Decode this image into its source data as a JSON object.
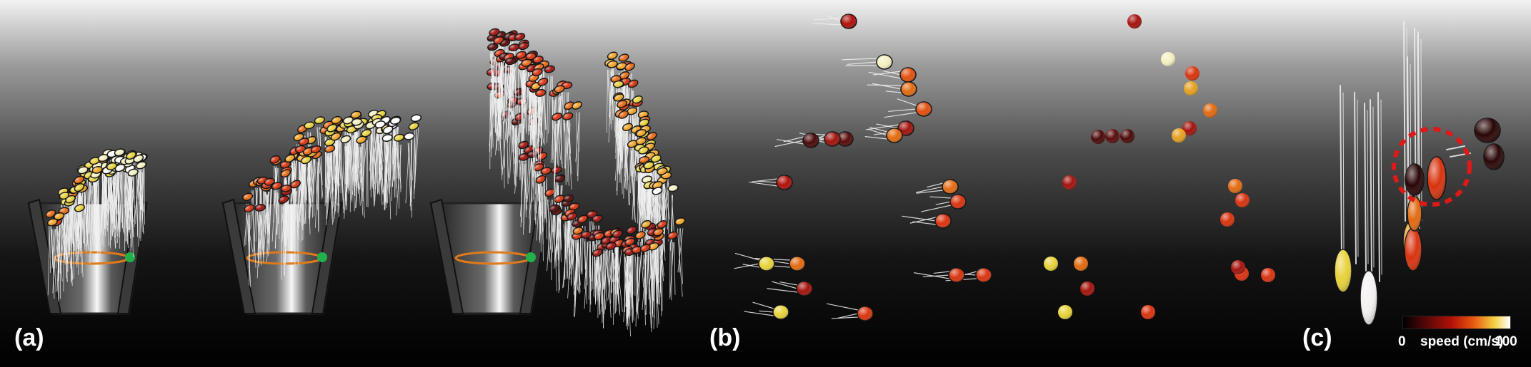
{
  "panels": [
    {
      "label": "(a)"
    },
    {
      "label": "(b)"
    },
    {
      "label": "(c)"
    }
  ],
  "colorbar": {
    "min_label": "0",
    "axis_label": "speed (cm/s)",
    "max_label": "100",
    "colors": [
      "#000000",
      "#4a0608",
      "#b01008",
      "#e6560f",
      "#f3cf3f",
      "#ffffff"
    ]
  },
  "colors": {
    "ring": "#e07a1a",
    "marker": "#22b04a",
    "highlight": "#e01818"
  }
}
